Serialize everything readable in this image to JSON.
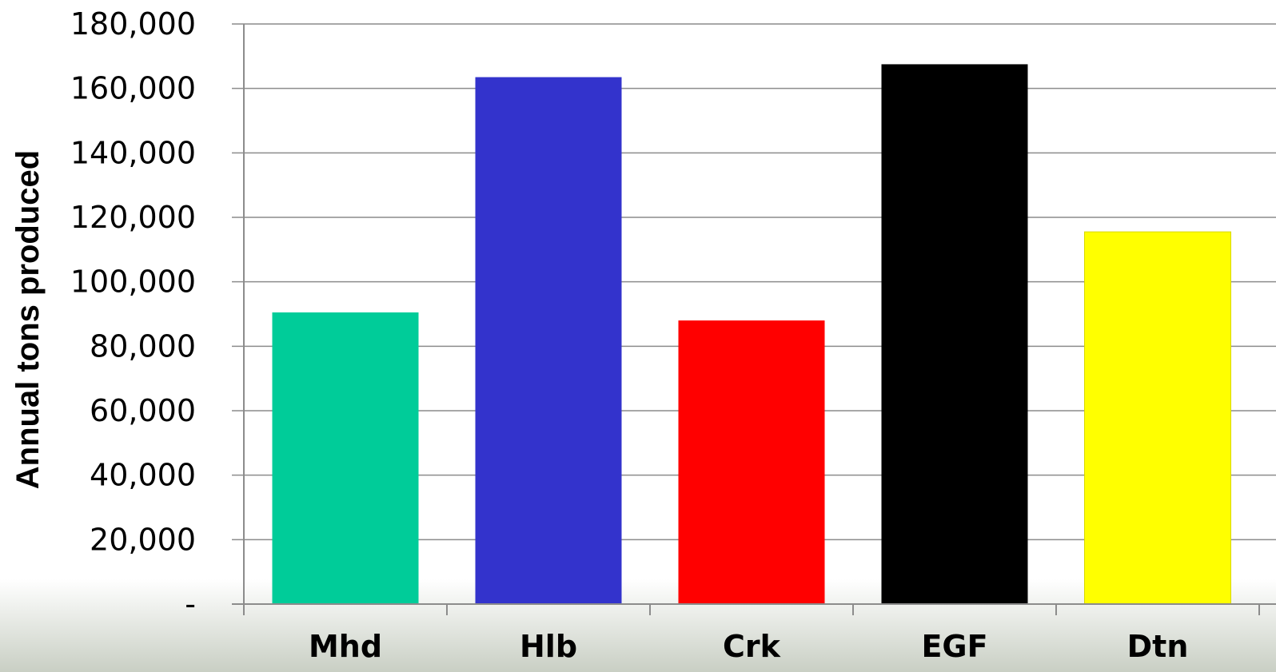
{
  "chart_data": {
    "type": "bar",
    "categories": [
      "Mhd",
      "Hlb",
      "Crk",
      "EGF",
      "Dtn"
    ],
    "values": [
      90500,
      163500,
      88000,
      167500,
      115500
    ],
    "colors": [
      "#00cc99",
      "#3333cc",
      "#ff0000",
      "#000000",
      "#ffff00"
    ],
    "ylabel": "Annual tons produced",
    "ylim": [
      0,
      180000
    ],
    "yticks": [
      0,
      20000,
      40000,
      60000,
      80000,
      100000,
      120000,
      140000,
      160000,
      180000
    ],
    "ytick_labels": [
      "-",
      "20,000",
      "40,000",
      "60,000",
      "80,000",
      "100,000",
      "120,000",
      "140,000",
      "160,000",
      "180,000"
    ],
    "grid": true,
    "legend": "none"
  }
}
